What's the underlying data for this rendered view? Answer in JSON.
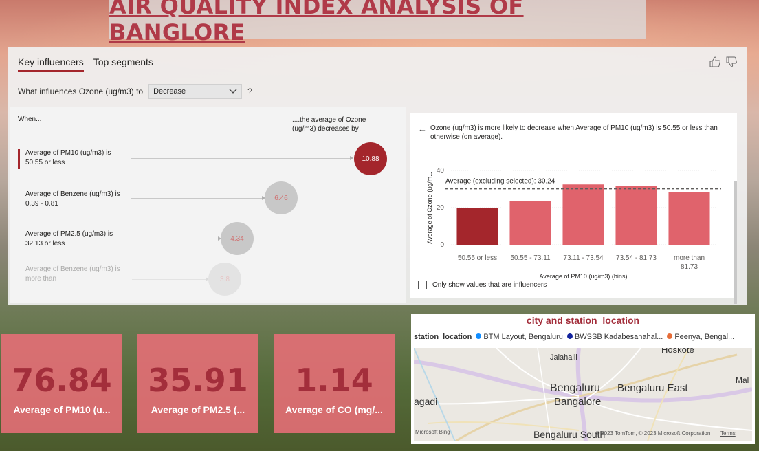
{
  "title": "AIR QUALITY INDEX ANALYSIS OF BANGLORE",
  "key_influencers": {
    "tabs": [
      "Key influencers",
      "Top segments"
    ],
    "question_prefix": "What influences Ozone (ug/m3) to",
    "dropdown_value": "Decrease",
    "question_mark": "?",
    "when_header": "When...",
    "avg_header": "....the average of Ozone (ug/m3) decreases by",
    "influencers": [
      {
        "label": "Average of PM10 (ug/m3) is 50.55 or less",
        "value": "10.88"
      },
      {
        "label": "Average of Benzene (ug/m3) is 0.39 - 0.81",
        "value": "6.46"
      },
      {
        "label": "Average of PM2.5 (ug/m3) is 32.13 or less",
        "value": "4.34"
      },
      {
        "label": "Average of Benzene (ug/m3) is more than",
        "value": "3.8"
      }
    ],
    "detail_text": "Ozone (ug/m3) is more likely to decrease when Average of PM10 (ug/m3) is 50.55 or less than otherwise (on average).",
    "checkbox_label": "Only show values that are influencers"
  },
  "chart_data": {
    "type": "bar",
    "categories": [
      "50.55 or less",
      "50.55 - 73.11",
      "73.11 - 73.54",
      "73.54 - 81.73",
      "more than 81.73"
    ],
    "values": [
      20,
      23.5,
      32.5,
      31.5,
      28.5
    ],
    "ylabel": "Average of Ozone (ug/m...",
    "xlabel": "Average of PM10 (ug/m3) (bins)",
    "yticks": [
      0,
      20,
      40
    ],
    "ylim": [
      0,
      40
    ],
    "reference_line": {
      "label": "Average (excluding selected): 30.24",
      "value": 30.24
    },
    "colors": {
      "selected": "#a4262c",
      "other": "#e0636c"
    }
  },
  "kpis": [
    {
      "value": "76.84",
      "label": "Average of PM10 (u..."
    },
    {
      "value": "35.91",
      "label": "Average of PM2.5 (..."
    },
    {
      "value": "1.14",
      "label": "Average of CO (mg/..."
    }
  ],
  "map": {
    "title": "city and station_location",
    "legend_title": "station_location",
    "legend_items": [
      {
        "label": "BTM Layout, Bengaluru",
        "color": "#118dff"
      },
      {
        "label": "BWSSB Kadabesanahal...",
        "color": "#12239e"
      },
      {
        "label": "Peenya, Bengal...",
        "color": "#e66c37"
      }
    ],
    "labels": {
      "hoskote": "Hoskote",
      "jalahalli": "Jalahalli",
      "mal": "Mal",
      "bengaluru": "Bengaluru",
      "bangalore": "Bangalore",
      "bengaluru_east": "Bengaluru East",
      "agadi": "agadi",
      "bengaluru_south": "Bengaluru South"
    },
    "credit_left": "Microsoft Bing",
    "credit_right": "© 2023 TomTom, © 2023 Microsoft Corporation",
    "terms": "Terms"
  }
}
